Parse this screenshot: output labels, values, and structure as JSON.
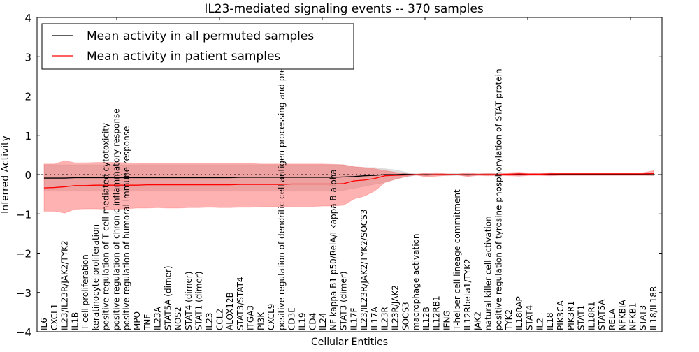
{
  "chart_data": {
    "type": "line",
    "title": "IL23-mediated signaling events -- 370 samples",
    "xlabel": "Cellular Entities",
    "ylabel": "Inferred Activity",
    "ylim": [
      -4,
      4
    ],
    "yticks": [
      4,
      3,
      2,
      1,
      0,
      -1,
      -2,
      -3,
      -4
    ],
    "ytick_labels": [
      "4",
      "3",
      "2",
      "1",
      "0",
      "−1",
      "−2",
      "−3",
      "−4"
    ],
    "grid": false,
    "reference_line": {
      "y": 0,
      "style": "dotted"
    },
    "legend": {
      "placement": "top-left",
      "entries": [
        {
          "label": "Mean activity in all permuted samples",
          "color": "#000000"
        },
        {
          "label": "Mean activity in patient samples",
          "color": "#ff0000"
        }
      ]
    },
    "categories": [
      "IL6",
      "CXCL1",
      "IL23/IL23R/JAK2/TYK2",
      "IL1B",
      "T cell proliferation",
      "keratinocyte proliferation",
      "positive regulation of T cell mediated cytotoxicity",
      "positive regulation of chronic inflammatory response",
      "positive regulation of humoral immune response",
      "MPO",
      "TNF",
      "IL23A",
      "STAT5A (dimer)",
      "NOS2",
      "STAT4 (dimer)",
      "STAT1 (dimer)",
      "IL23",
      "CCL2",
      "ALOX12B",
      "STAT3/STAT4",
      "ITGA3",
      "PI3K",
      "CXCL9",
      "positive regulation of dendritic cell antigen processing and presentation",
      "CD3E",
      "IL19",
      "CD4",
      "IL24",
      "NF kappa B1 p50/RelA/I kappa B alpha",
      "STAT3 (dimer)",
      "IL17F",
      "IL23/IL23R/JAK2/TYK2/SOCS3",
      "IL17A",
      "IL23R",
      "IL23R/JAK2",
      "SOCS3",
      "macrophage activation",
      "IL12B",
      "IL12RB1",
      "IFNG",
      "T-helper cell lineage commitment",
      "IL12Rbeta1/TYK2",
      "JAK2",
      "natural killer cell activation",
      "positive regulation of tyrosine phosphorylation of STAT protein",
      "TYK2",
      "IL18RAP",
      "STAT4",
      "IL2",
      "IL18",
      "PIK3CA",
      "PIK3R1",
      "STAT1",
      "IL18R1",
      "STAT5A",
      "RELA",
      "NFKBIA",
      "NFKB1",
      "STAT3",
      "IL18/IL18R"
    ],
    "series": [
      {
        "name": "Mean activity in all permuted samples",
        "color": "#000000",
        "values": [
          -0.09,
          -0.09,
          -0.09,
          -0.08,
          -0.08,
          -0.08,
          -0.08,
          -0.08,
          -0.08,
          -0.08,
          -0.08,
          -0.08,
          -0.08,
          -0.08,
          -0.08,
          -0.08,
          -0.08,
          -0.08,
          -0.08,
          -0.07,
          -0.07,
          -0.07,
          -0.07,
          -0.07,
          -0.07,
          -0.07,
          -0.07,
          -0.07,
          -0.07,
          -0.06,
          -0.05,
          -0.03,
          -0.02,
          0.0,
          0.0,
          0.01,
          0.0,
          0.0,
          0.0,
          0.0,
          0.0,
          0.0,
          0.0,
          0.0,
          0.0,
          0.0,
          0.0,
          0.0,
          0.0,
          0.0,
          0.0,
          0.0,
          0.0,
          0.0,
          0.0,
          0.0,
          0.0,
          0.0,
          0.0,
          0.0
        ],
        "band_low": [
          -0.42,
          -0.42,
          -0.42,
          -0.42,
          -0.42,
          -0.42,
          -0.42,
          -0.42,
          -0.42,
          -0.42,
          -0.42,
          -0.42,
          -0.42,
          -0.42,
          -0.42,
          -0.42,
          -0.42,
          -0.42,
          -0.42,
          -0.42,
          -0.42,
          -0.42,
          -0.42,
          -0.42,
          -0.42,
          -0.42,
          -0.42,
          -0.42,
          -0.42,
          -0.4,
          -0.35,
          -0.3,
          -0.25,
          -0.2,
          -0.12,
          -0.06,
          -0.02,
          -0.03,
          -0.02,
          -0.03,
          -0.02,
          -0.03,
          -0.02,
          -0.02,
          -0.02,
          -0.02,
          -0.02,
          -0.02,
          -0.02,
          -0.02,
          -0.02,
          -0.02,
          -0.02,
          -0.02,
          -0.02,
          -0.02,
          -0.02,
          -0.02,
          -0.02,
          -0.03
        ],
        "band_high": [
          0.25,
          0.25,
          0.25,
          0.25,
          0.25,
          0.25,
          0.25,
          0.25,
          0.25,
          0.25,
          0.25,
          0.25,
          0.25,
          0.25,
          0.25,
          0.25,
          0.25,
          0.25,
          0.25,
          0.25,
          0.25,
          0.25,
          0.25,
          0.25,
          0.25,
          0.25,
          0.25,
          0.25,
          0.25,
          0.25,
          0.2,
          0.18,
          0.18,
          0.15,
          0.12,
          0.06,
          0.02,
          0.03,
          0.03,
          0.02,
          0.03,
          0.02,
          0.02,
          0.03,
          0.02,
          0.02,
          0.03,
          0.02,
          0.02,
          0.02,
          0.02,
          0.02,
          0.02,
          0.02,
          0.02,
          0.02,
          0.02,
          0.02,
          0.02,
          0.04
        ]
      },
      {
        "name": "Mean activity in patient samples",
        "color": "#ff0000",
        "values": [
          -0.34,
          -0.33,
          -0.31,
          -0.28,
          -0.28,
          -0.27,
          -0.27,
          -0.27,
          -0.27,
          -0.27,
          -0.26,
          -0.26,
          -0.26,
          -0.26,
          -0.26,
          -0.26,
          -0.26,
          -0.26,
          -0.26,
          -0.25,
          -0.25,
          -0.25,
          -0.25,
          -0.25,
          -0.24,
          -0.24,
          -0.24,
          -0.24,
          -0.24,
          -0.23,
          -0.16,
          -0.14,
          -0.1,
          -0.03,
          -0.02,
          -0.01,
          0.0,
          -0.01,
          0.0,
          0.0,
          0.0,
          -0.01,
          0.0,
          0.0,
          0.0,
          0.01,
          0.02,
          0.01,
          0.01,
          0.02,
          0.02,
          0.02,
          0.02,
          0.02,
          0.02,
          0.02,
          0.02,
          0.02,
          0.02,
          0.03
        ],
        "band_low": [
          -0.93,
          -0.93,
          -0.98,
          -0.88,
          -0.87,
          -0.87,
          -0.88,
          -0.88,
          -0.87,
          -0.85,
          -0.85,
          -0.84,
          -0.85,
          -0.85,
          -0.84,
          -0.84,
          -0.83,
          -0.84,
          -0.84,
          -0.83,
          -0.83,
          -0.82,
          -0.82,
          -0.82,
          -0.81,
          -0.81,
          -0.81,
          -0.8,
          -0.8,
          -0.78,
          -0.62,
          -0.55,
          -0.42,
          -0.2,
          -0.12,
          -0.05,
          -0.01,
          -0.06,
          -0.04,
          -0.02,
          -0.01,
          -0.05,
          -0.02,
          -0.03,
          -0.02,
          -0.03,
          -0.04,
          -0.02,
          -0.02,
          -0.03,
          -0.02,
          -0.02,
          -0.02,
          -0.02,
          -0.02,
          -0.02,
          -0.02,
          -0.02,
          -0.02,
          -0.02
        ],
        "band_high": [
          0.27,
          0.27,
          0.35,
          0.3,
          0.3,
          0.31,
          0.31,
          0.31,
          0.3,
          0.29,
          0.28,
          0.28,
          0.29,
          0.28,
          0.28,
          0.28,
          0.28,
          0.28,
          0.29,
          0.28,
          0.28,
          0.27,
          0.27,
          0.27,
          0.27,
          0.27,
          0.27,
          0.27,
          0.26,
          0.25,
          0.2,
          0.18,
          0.15,
          0.1,
          0.06,
          0.02,
          0.01,
          0.04,
          0.05,
          0.02,
          0.01,
          0.05,
          0.02,
          0.03,
          0.02,
          0.05,
          0.06,
          0.04,
          0.03,
          0.05,
          0.04,
          0.04,
          0.04,
          0.04,
          0.04,
          0.04,
          0.04,
          0.04,
          0.05,
          0.1
        ]
      }
    ]
  }
}
